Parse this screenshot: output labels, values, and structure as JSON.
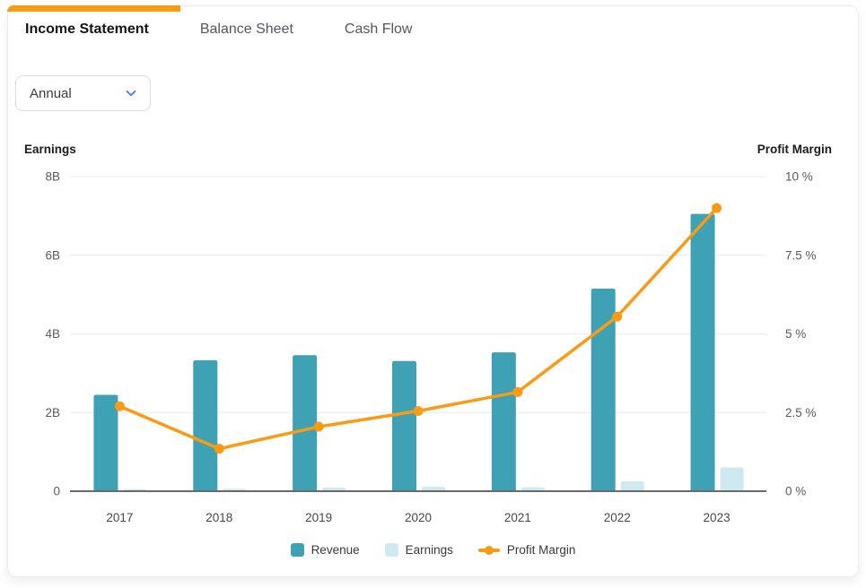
{
  "tabs": [
    {
      "label": "Income Statement",
      "active": true
    },
    {
      "label": "Balance Sheet",
      "active": false
    },
    {
      "label": "Cash Flow",
      "active": false
    }
  ],
  "filter": {
    "value": "Annual",
    "icon": "chevron-down-icon"
  },
  "colors": {
    "accent_orange": "#FB9A13",
    "revenue_teal": "#3FA2B4",
    "earnings_light_blue": "#CEE9F0",
    "margin_line_orange": "#F99B15",
    "gridline": "#ececec",
    "axis_line": "#6a6a6a",
    "tick_text": "#5a5a5a",
    "chevron_blue": "#4A7CF0"
  },
  "chart_data": {
    "type": "bar",
    "title": "",
    "categories": [
      "2017",
      "2018",
      "2019",
      "2020",
      "2021",
      "2022",
      "2023"
    ],
    "series": [
      {
        "name": "Revenue",
        "type": "bar",
        "axis": "left",
        "color": "#3FA2B4",
        "values": [
          2.45,
          3.33,
          3.46,
          3.31,
          3.53,
          5.15,
          7.05
        ]
      },
      {
        "name": "Earnings",
        "type": "bar",
        "axis": "left",
        "color": "#CEE9F0",
        "values": [
          0.05,
          0.06,
          0.09,
          0.11,
          0.1,
          0.25,
          0.6
        ]
      },
      {
        "name": "Profit Margin",
        "type": "line",
        "axis": "right",
        "color": "#F99B15",
        "values": [
          2.7,
          1.35,
          2.05,
          2.55,
          3.15,
          5.55,
          9.0
        ]
      }
    ],
    "left_axis": {
      "title": "Earnings",
      "min": 0,
      "max": 8,
      "tick_labels": [
        "0",
        "2B",
        "4B",
        "6B",
        "8B"
      ]
    },
    "right_axis": {
      "title": "Profit Margin",
      "min": 0,
      "max": 10,
      "tick_labels": [
        "0 %",
        "2.5 %",
        "5 %",
        "7.5 %",
        "10 %"
      ]
    },
    "legend": [
      "Revenue",
      "Earnings",
      "Profit Margin"
    ],
    "grid": true,
    "legend_position": "bottom"
  }
}
